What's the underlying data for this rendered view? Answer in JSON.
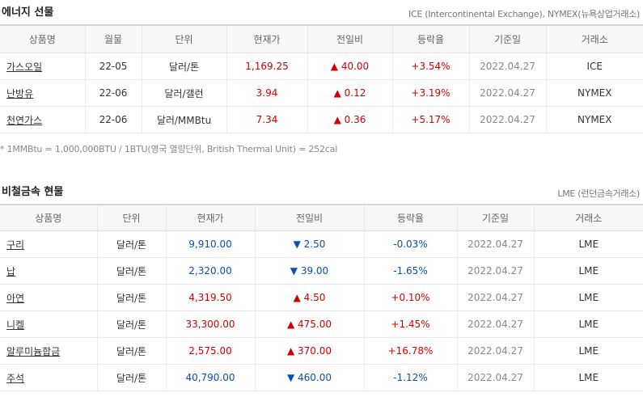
{
  "energy": {
    "title": "에너지 선물",
    "source": "ICE (Intercontinental Exchange), NYMEX(뉴욕상업거래소)",
    "table": {
      "header": [
        "상품명",
        "월물",
        "단위",
        "현재가",
        "전일비",
        "등락율",
        "기준일",
        "거래소"
      ],
      "rows": [
        [
          "가스오일",
          "22-05",
          "달러/톤",
          "1,169.25",
          "▲ 40.00",
          "+3.54%",
          "2022.04.27",
          "ICE"
        ],
        [
          "난방유",
          "22-06",
          "달러/갤런",
          "3.94",
          "▲ 0.12",
          "+3.19%",
          "2022.04.27",
          "NYMEX"
        ],
        [
          "천연가스",
          "22-06",
          "달러/MMBtu",
          "7.34",
          "▲ 0.36",
          "+5.17%",
          "2022.04.27",
          "NYMEX"
        ]
      ]
    },
    "note": "* 1MMBtu = 1,000,000BTU / 1BTU(영국 열량단위, British Thermal Unit) = 252cal"
  },
  "metals": {
    "title": "비철금속 현물",
    "source": "LME (런던금속거래소)",
    "table": {
      "header": [
        "상품명",
        "단위",
        "현재가",
        "전일비",
        "등락율",
        "기준일",
        "거래소"
      ],
      "rows": [
        [
          "구리",
          "달러/톤",
          "9,910.00",
          "▼ 2.50",
          "-0.03%",
          "2022.04.27",
          "LME"
        ],
        [
          "납",
          "달러/톤",
          "2,320.00",
          "▼ 39.00",
          "-1.65%",
          "2022.04.27",
          "LME"
        ],
        [
          "아연",
          "달러/톤",
          "4,319.50",
          "▲ 4.50",
          "+0.10%",
          "2022.04.27",
          "LME"
        ],
        [
          "니켈",
          "달러/톤",
          "33,300.00",
          "▲ 475.00",
          "+1.45%",
          "2022.04.27",
          "LME"
        ],
        [
          "알루미늄합금",
          "달러/톤",
          "2,575.00",
          "▲ 370.00",
          "+16.78%",
          "2022.04.27",
          "LME"
        ],
        [
          "주석",
          "달러/톤",
          "40,790.00",
          "▼ 460.00",
          "-1.12%",
          "2022.04.27",
          "LME"
        ]
      ]
    }
  }
}
